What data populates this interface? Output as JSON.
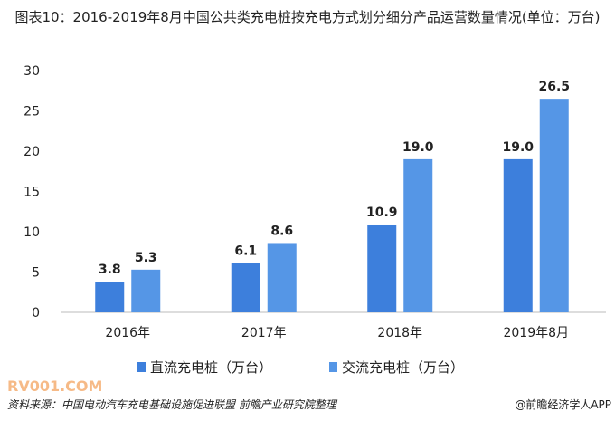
{
  "chart_data": {
    "type": "bar",
    "title": "图表10：2016-2019年8月中国公共类充电桩按充电方式划分细分产品运营数量情况(单位：万台)",
    "categories": [
      "2016年",
      "2017年",
      "2018年",
      "2019年8月"
    ],
    "series": [
      {
        "name": "直流充电桩（万台）",
        "values": [
          3.8,
          6.1,
          10.9,
          19.0
        ],
        "labels": [
          "3.8",
          "6.1",
          "10.9",
          "19.0"
        ],
        "color": "#3d7fdc"
      },
      {
        "name": "交流充电桩（万台）",
        "values": [
          5.3,
          8.6,
          19.0,
          26.5
        ],
        "labels": [
          "5.3",
          "8.6",
          "19.0",
          "26.5"
        ],
        "color": "#5596e6"
      }
    ],
    "ylim": [
      0,
      30
    ],
    "yticks": [
      "0",
      "5",
      "10",
      "15",
      "20",
      "25",
      "30"
    ],
    "xlabel": "",
    "ylabel": "",
    "grid": false,
    "legend": "bottom"
  },
  "footer": {
    "source": "资料来源：中国电动汽车充电基础设施促进联盟 前瞻产业研究院整理",
    "brand": "@前瞻经济学人APP",
    "watermark": "RV001.COM"
  }
}
